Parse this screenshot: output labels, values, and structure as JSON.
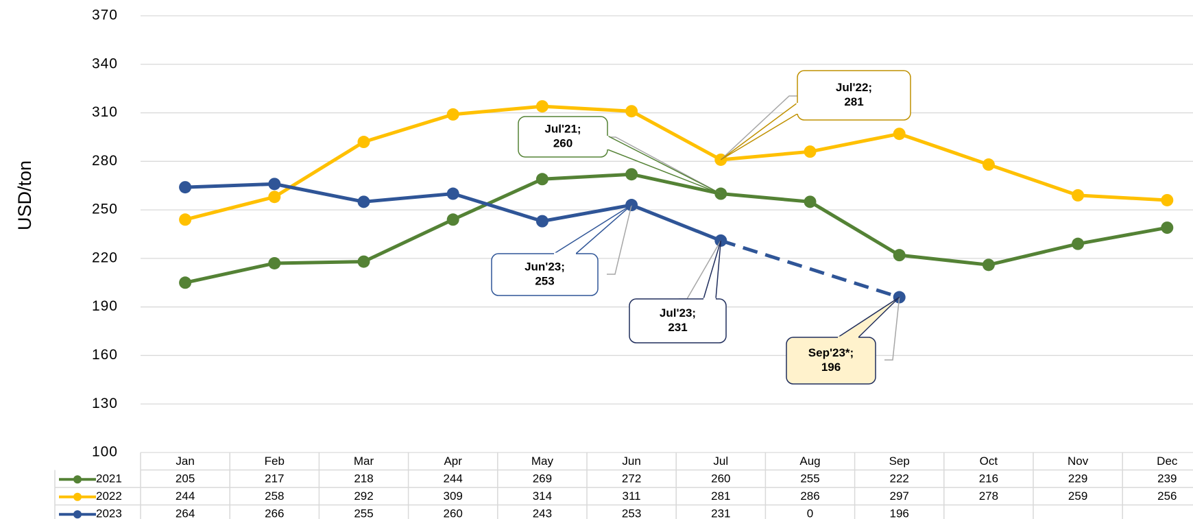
{
  "chart_data": {
    "type": "line",
    "y_label": "USD/ton",
    "categories": [
      "Jan",
      "Feb",
      "Mar",
      "Apr",
      "May",
      "Jun",
      "Jul",
      "Aug",
      "Sep",
      "Oct",
      "Nov",
      "Dec"
    ],
    "series": [
      {
        "name": "2021",
        "color": "#548235",
        "values": [
          205,
          217,
          218,
          244,
          269,
          272,
          260,
          255,
          222,
          216,
          229,
          239
        ]
      },
      {
        "name": "2022",
        "color": "#ffc000",
        "values": [
          244,
          258,
          292,
          309,
          314,
          311,
          281,
          286,
          297,
          278,
          259,
          256
        ]
      },
      {
        "name": "2023",
        "color": "#2f5597",
        "values": [
          264,
          266,
          255,
          260,
          243,
          253,
          231,
          0,
          196,
          null,
          null,
          null
        ]
      }
    ],
    "ylim": [
      100,
      370
    ],
    "yticks": [
      100,
      130,
      160,
      190,
      220,
      250,
      280,
      310,
      340,
      370
    ],
    "grid": true,
    "annotations": [
      {
        "lines": [
          "Jul'22;",
          "281"
        ],
        "color": "#bf9000",
        "fill": "#ffffff"
      },
      {
        "lines": [
          "Jul'21;",
          "260"
        ],
        "color": "#548235",
        "fill": "#ffffff"
      },
      {
        "lines": [
          "Jun'23;",
          "253"
        ],
        "color": "#2f5597",
        "fill": "#ffffff"
      },
      {
        "lines": [
          "Jul'23;",
          "231"
        ],
        "color": "#1f2d5c",
        "fill": "#ffffff"
      },
      {
        "lines": [
          "Sep'23*;",
          "196"
        ],
        "color": "#1f2d5c",
        "fill": "#fff2cc"
      }
    ]
  }
}
